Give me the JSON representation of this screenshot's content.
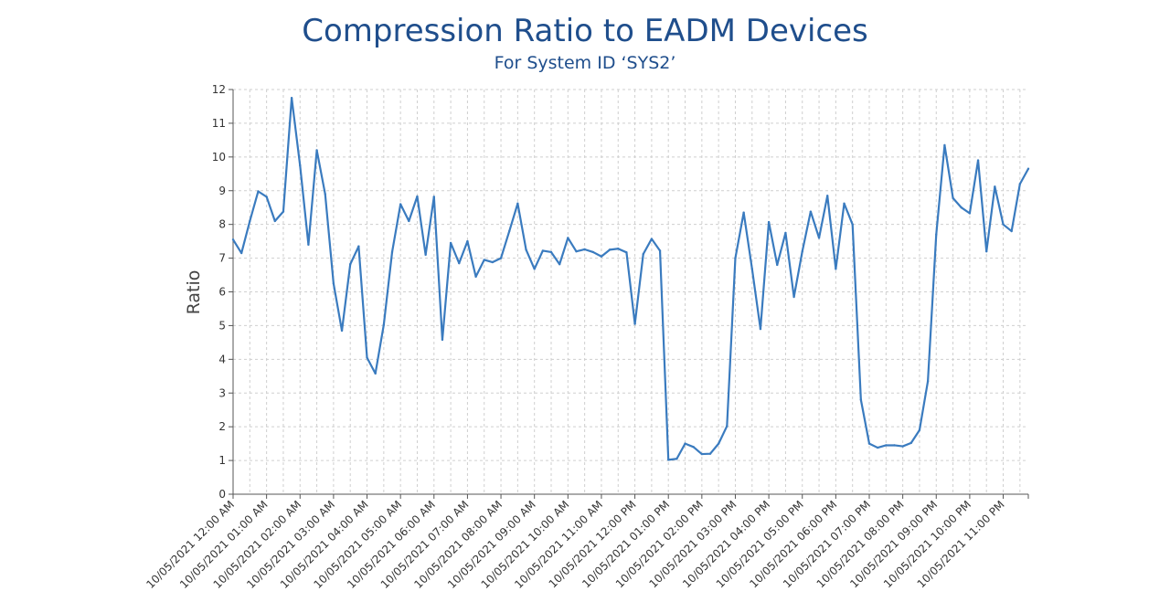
{
  "chart_data": {
    "type": "line",
    "title": "Compression Ratio to EADM Devices",
    "subtitle": "For System ID ‘SYS2’",
    "xlabel": "",
    "ylabel": "Ratio",
    "ylim": [
      0,
      12
    ],
    "yticks": [
      0,
      1,
      2,
      3,
      4,
      5,
      6,
      7,
      8,
      9,
      10,
      11,
      12
    ],
    "grid": true,
    "legend": "none",
    "line_color": "#3a7bbf",
    "x_tick_labels": [
      "10/05/2021 12:00 AM",
      "10/05/2021 01:00 AM",
      "10/05/2021 02:00 AM",
      "10/05/2021 03:00 AM",
      "10/05/2021 04:00 AM",
      "10/05/2021 05:00 AM",
      "10/05/2021 06:00 AM",
      "10/05/2021 07:00 AM",
      "10/05/2021 08:00 AM",
      "10/05/2021 09:00 AM",
      "10/05/2021 10:00 AM",
      "10/05/2021 11:00 AM",
      "10/05/2021 12:00 PM",
      "10/05/2021 01:00 PM",
      "10/05/2021 02:00 PM",
      "10/05/2021 03:00 PM",
      "10/05/2021 04:00 PM",
      "10/05/2021 05:00 PM",
      "10/05/2021 06:00 PM",
      "10/05/2021 07:00 PM",
      "10/05/2021 08:00 PM",
      "10/05/2021 09:00 PM",
      "10/05/2021 10:00 PM",
      "10/05/2021 11:00 PM"
    ],
    "series": [
      {
        "values": [
          7.55,
          7.15,
          8.1,
          8.98,
          8.82,
          8.1,
          8.38,
          11.75,
          9.75,
          7.4,
          10.2,
          8.9,
          6.25,
          4.85,
          6.82,
          7.35,
          4.05,
          3.58,
          5.02,
          7.18,
          8.6,
          8.1,
          8.83,
          7.1,
          8.82,
          4.58,
          7.45,
          6.85,
          7.5,
          6.45,
          6.95,
          6.88,
          7.0,
          7.8,
          8.62,
          7.25,
          6.68,
          7.22,
          7.18,
          6.82,
          7.6,
          7.2,
          7.26,
          7.18,
          7.05,
          7.25,
          7.28,
          7.17,
          5.05,
          7.12,
          7.57,
          7.22,
          1.02,
          1.05,
          1.5,
          1.4,
          1.19,
          1.2,
          1.5,
          2.02,
          7.0,
          8.35,
          6.68,
          4.9,
          8.07,
          6.8,
          7.75,
          5.85,
          7.2,
          8.38,
          7.6,
          8.85,
          6.68,
          8.62,
          8.0,
          2.8,
          1.5,
          1.38,
          1.45,
          1.45,
          1.42,
          1.52,
          1.9,
          3.35,
          7.7,
          10.35,
          8.78,
          8.5,
          8.33,
          9.9,
          7.2,
          9.12,
          8.0,
          7.8,
          9.2,
          9.65
        ]
      }
    ]
  }
}
